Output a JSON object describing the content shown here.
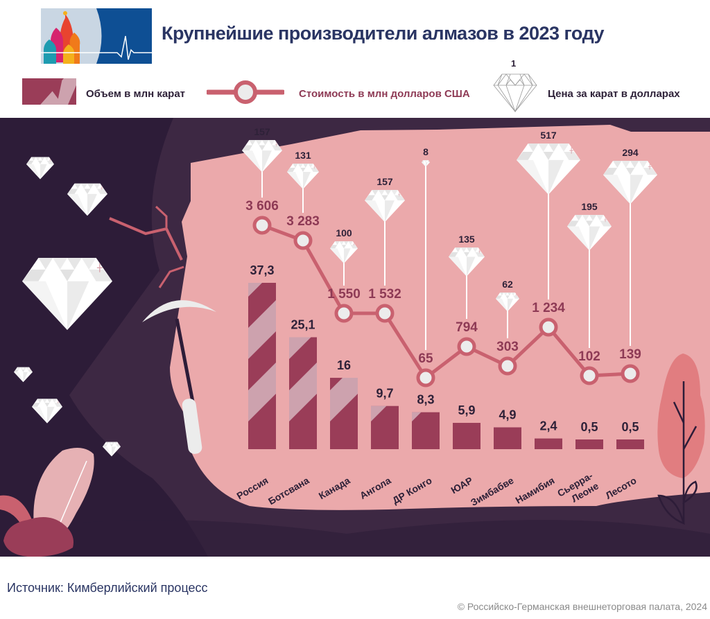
{
  "header": {
    "title": "Крупнейшие производители алмазов в 2023 году"
  },
  "legend": {
    "volume_label": "Объем в млн карат",
    "value_label": "Стоимость в млн долларов США",
    "price_label": "Цена за карат в долларах",
    "price_example": "1"
  },
  "footer": {
    "source": "Источник: Кимберлийский процесс",
    "copyright": "© Российско-Германская внешнеторговая палата, 2024"
  },
  "colors": {
    "background_dark": "#2d1c38",
    "background_mid": "#3d2843",
    "panel_pink": "#eba9ab",
    "bar_dark": "#9a3d58",
    "bar_light": "#cda2ae",
    "line": "#c9616f",
    "value_text": "#8e3a55",
    "label_text": "#2e2138",
    "diamond": "#ffffff"
  },
  "chart_data": {
    "type": "bar",
    "title": "Крупнейшие производители алмазов в 2023 году",
    "xlabel": "",
    "ylabel": "",
    "categories": [
      "Россия",
      "Ботсвана",
      "Канада",
      "Ангола",
      "ДР Конго",
      "ЮАР",
      "Зимбабве",
      "Намибия",
      "Сьерра-Леоне",
      "Лесото"
    ],
    "series": [
      {
        "name": "Объем в млн карат",
        "type": "bar",
        "values": [
          37.3,
          25.1,
          16,
          9.7,
          8.3,
          5.9,
          4.9,
          2.4,
          0.5,
          0.5
        ],
        "labels": [
          "37,3",
          "25,1",
          "16",
          "9,7",
          "8,3",
          "5,9",
          "4,9",
          "2,4",
          "0,5",
          "0,5"
        ]
      },
      {
        "name": "Стоимость в млн долларов США",
        "type": "line",
        "values": [
          3606,
          3283,
          1550,
          1532,
          65,
          794,
          303,
          1234,
          102,
          139
        ],
        "labels": [
          "3 606",
          "3 283",
          "1 550",
          "1 532",
          "65",
          "794",
          "303",
          "1 234",
          "102",
          "139"
        ]
      },
      {
        "name": "Цена за карат в долларах",
        "type": "pictogram",
        "values": [
          157,
          131,
          100,
          157,
          8,
          135,
          62,
          517,
          195,
          294
        ],
        "labels": [
          "157",
          "131",
          "100",
          "157",
          "8",
          "135",
          "62",
          "517",
          "195",
          "294"
        ]
      }
    ],
    "legend_position": "top",
    "grid": false,
    "source": "Кимберлийский процесс"
  }
}
